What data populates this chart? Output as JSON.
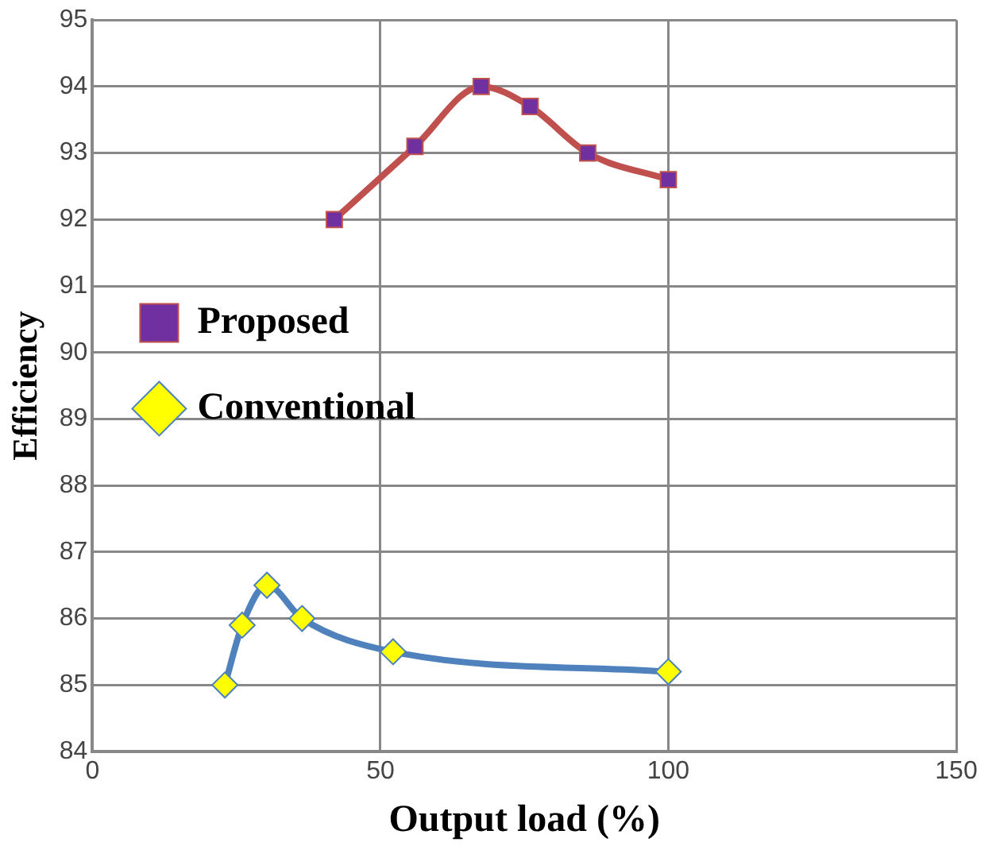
{
  "chart_data": {
    "type": "line",
    "xlabel": "Output load (%)",
    "ylabel": "Efficiency",
    "xlim": [
      0,
      150
    ],
    "xticks": [
      0,
      50,
      100,
      150
    ],
    "ylim": [
      84,
      95
    ],
    "yticks": [
      84,
      85,
      86,
      87,
      88,
      89,
      90,
      91,
      92,
      93,
      94,
      95
    ],
    "grid": true,
    "legend": "left",
    "series": [
      {
        "name": "Proposed",
        "color": "#c0504d",
        "marker": "square",
        "x": [
          42,
          56,
          67.5,
          76,
          86,
          100
        ],
        "values": [
          92.0,
          93.1,
          94.0,
          93.7,
          93.0,
          92.6
        ]
      },
      {
        "name": "Conventional",
        "color": "#4f81bd",
        "marker": "diamond",
        "x": [
          23,
          26,
          30.3,
          36.4,
          52.2,
          100
        ],
        "values": [
          85.0,
          85.9,
          86.5,
          86.0,
          85.5,
          85.2
        ]
      }
    ]
  }
}
